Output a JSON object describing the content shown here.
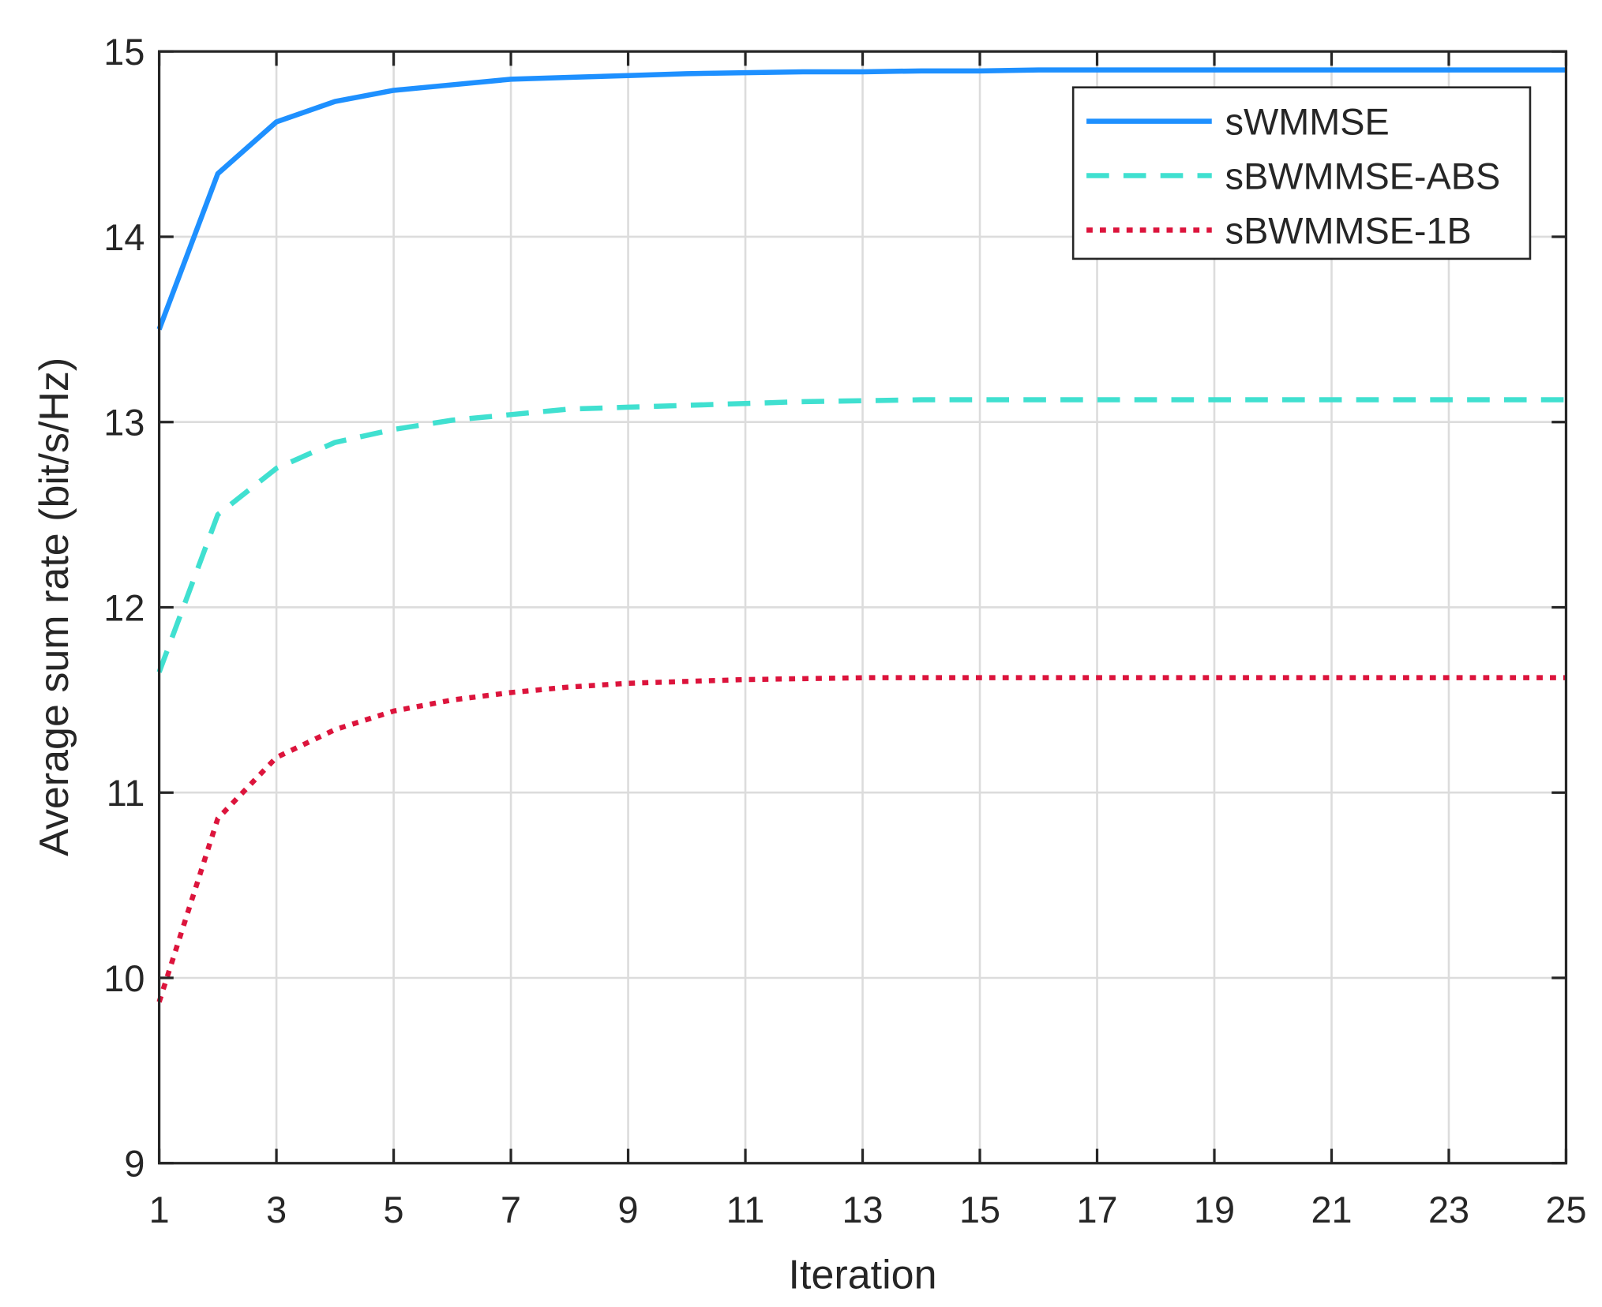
{
  "chart_data": {
    "type": "line",
    "title": "",
    "xlabel": "Iteration",
    "ylabel": "Average sum rate (bit/s/Hz)",
    "xlim": [
      1,
      25
    ],
    "ylim": [
      9,
      15
    ],
    "xticks": [
      1,
      3,
      5,
      7,
      9,
      11,
      13,
      15,
      17,
      19,
      21,
      23,
      25
    ],
    "yticks": [
      9,
      10,
      11,
      12,
      13,
      14,
      15
    ],
    "grid": true,
    "legend_position": "top-right",
    "x": [
      1,
      2,
      3,
      4,
      5,
      6,
      7,
      8,
      9,
      10,
      11,
      12,
      13,
      14,
      15,
      16,
      17,
      18,
      19,
      20,
      21,
      22,
      23,
      24,
      25
    ],
    "series": [
      {
        "name": "sWMMSE",
        "color": "#1E90FF",
        "style": "solid",
        "values": [
          13.5,
          14.34,
          14.62,
          14.73,
          14.79,
          14.82,
          14.85,
          14.86,
          14.87,
          14.88,
          14.885,
          14.89,
          14.89,
          14.895,
          14.895,
          14.9,
          14.9,
          14.9,
          14.9,
          14.9,
          14.9,
          14.9,
          14.9,
          14.9,
          14.9
        ]
      },
      {
        "name": "sBWMMSE-ABS",
        "color": "#40E0D0",
        "style": "dashed",
        "values": [
          11.65,
          12.5,
          12.75,
          12.89,
          12.96,
          13.01,
          13.04,
          13.07,
          13.08,
          13.09,
          13.1,
          13.11,
          13.115,
          13.12,
          13.12,
          13.12,
          13.12,
          13.12,
          13.12,
          13.12,
          13.12,
          13.12,
          13.12,
          13.12,
          13.12
        ]
      },
      {
        "name": "sBWMMSE-1B",
        "color": "#DC143C",
        "style": "dotted",
        "values": [
          9.87,
          10.86,
          11.19,
          11.34,
          11.44,
          11.5,
          11.54,
          11.57,
          11.59,
          11.6,
          11.61,
          11.615,
          11.62,
          11.62,
          11.62,
          11.62,
          11.62,
          11.62,
          11.62,
          11.62,
          11.62,
          11.62,
          11.62,
          11.62,
          11.62
        ]
      }
    ]
  }
}
